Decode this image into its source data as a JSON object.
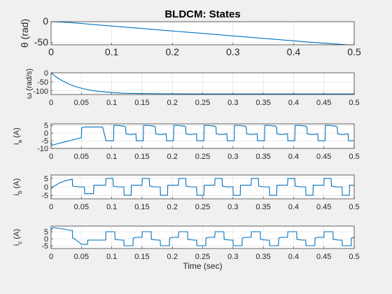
{
  "chart_data": [
    {
      "type": "line",
      "title": "BLDCM: States",
      "xlabel": "",
      "ylabel": "θ (rad)",
      "xlim": [
        0,
        0.5
      ],
      "ylim": [
        -55,
        0
      ],
      "xticks": [
        "0",
        "0.1",
        "0.2",
        "0.3",
        "0.4",
        "0.5"
      ],
      "yticks": [
        "0",
        "-50"
      ],
      "grid": true,
      "series": [
        {
          "color": "#0072BD",
          "x": [
            0,
            0.01,
            0.02,
            0.03,
            0.05,
            0.07,
            0.1,
            0.15,
            0.2,
            0.25,
            0.3,
            0.35,
            0.4,
            0.45,
            0.49,
            0.5
          ],
          "y": [
            0,
            -0.3,
            -1.0,
            -2.0,
            -4.4,
            -6.8,
            -10.4,
            -16.2,
            -22.1,
            -27.9,
            -33.8,
            -39.6,
            -45.5,
            -51.3,
            -55,
            -55
          ]
        }
      ]
    },
    {
      "type": "line",
      "title": "",
      "xlabel": "",
      "ylabel": "ω (rad/s)",
      "xlim": [
        0,
        0.5
      ],
      "ylim": [
        -120,
        0
      ],
      "xticks": [
        "0",
        "0.05",
        "0.1",
        "0.15",
        "0.2",
        "0.25",
        "0.3",
        "0.35",
        "0.4",
        "0.45",
        "0.5"
      ],
      "yticks": [
        "0",
        "-50",
        "-100"
      ],
      "grid": true,
      "series": [
        {
          "color": "#0072BD",
          "x": [
            0,
            0.005,
            0.01,
            0.02,
            0.03,
            0.04,
            0.05,
            0.06,
            0.07,
            0.08,
            0.1,
            0.12,
            0.15,
            0.2,
            0.25,
            0.3,
            0.4,
            0.5
          ],
          "y": [
            0,
            -14,
            -27,
            -47,
            -63,
            -76,
            -85,
            -93,
            -99,
            -103,
            -109,
            -113,
            -115,
            -116,
            -117,
            -117,
            -117,
            -117
          ]
        }
      ]
    },
    {
      "type": "line",
      "title": "",
      "xlabel": "",
      "ylabel": "i_a (A)",
      "xlim": [
        0,
        0.5
      ],
      "ylim": [
        -10,
        6
      ],
      "xticks": [
        "0",
        "0.05",
        "0.1",
        "0.15",
        "0.2",
        "0.25",
        "0.3",
        "0.35",
        "0.4",
        "0.45",
        "0.5"
      ],
      "yticks": [
        "5",
        "0",
        "-5",
        "-10"
      ],
      "grid": true,
      "series": [
        {
          "color": "#0072BD",
          "x": [
            0,
            0.002,
            0.01,
            0.02,
            0.03,
            0.04,
            0.05,
            0.0505,
            0.055,
            0.07,
            0.08,
            0.085,
            0.09,
            0.0905,
            0.1,
            0.103,
            0.1035,
            0.11,
            0.12,
            0.123,
            0.1235,
            0.13,
            0.14,
            0.1405,
            0.15,
            0.152,
            0.1525,
            0.16,
            0.17,
            0.172,
            0.1725,
            0.18,
            0.19,
            0.1905,
            0.2,
            0.202,
            0.2025,
            0.21,
            0.22,
            0.222,
            0.2225,
            0.23,
            0.24,
            0.2405,
            0.25,
            0.252,
            0.2525,
            0.26,
            0.27,
            0.272,
            0.2725,
            0.28,
            0.29,
            0.2905,
            0.3,
            0.302,
            0.3025,
            0.31,
            0.32,
            0.322,
            0.3225,
            0.33,
            0.34,
            0.3405,
            0.35,
            0.352,
            0.3525,
            0.36,
            0.37,
            0.372,
            0.3725,
            0.38,
            0.39,
            0.3905,
            0.4,
            0.402,
            0.4025,
            0.41,
            0.42,
            0.422,
            0.4225,
            0.43,
            0.44,
            0.4405,
            0.45,
            0.452,
            0.4525,
            0.46,
            0.47,
            0.472,
            0.4725,
            0.48,
            0.49,
            0.4905,
            0.5
          ],
          "y": [
            -6,
            -8,
            -7,
            -6,
            -5,
            -4,
            -3,
            3.5,
            4,
            4,
            4,
            4,
            -4,
            -5,
            -5,
            -5,
            5,
            5,
            4.5,
            4,
            -0.5,
            -1,
            -0.5,
            -5,
            -5,
            -5,
            5,
            5,
            4.5,
            4,
            -0.5,
            -1,
            -0.5,
            -5,
            -5,
            -5,
            5,
            5,
            4.5,
            4,
            -0.5,
            -1,
            -0.5,
            -5,
            -5,
            -5,
            5,
            5,
            4.5,
            4,
            -0.5,
            -1,
            -0.5,
            -5,
            -5,
            -5,
            5,
            5,
            4.5,
            4,
            -0.5,
            -1,
            -0.5,
            -5,
            -5,
            -5,
            5,
            5,
            4.5,
            4,
            -0.5,
            -1,
            -0.5,
            -5,
            -5,
            -5,
            5,
            5,
            4.5,
            4,
            -0.5,
            -1,
            -0.5,
            -5,
            -5,
            -5,
            5,
            5,
            4.5,
            4,
            -0.5,
            -1,
            -0.5,
            -5,
            -5
          ]
        }
      ]
    },
    {
      "type": "line",
      "title": "",
      "xlabel": "",
      "ylabel": "i_b (A)",
      "xlim": [
        0,
        0.5
      ],
      "ylim": [
        -7,
        7
      ],
      "xticks": [
        "0",
        "0.05",
        "0.1",
        "0.15",
        "0.2",
        "0.25",
        "0.3",
        "0.35",
        "0.4",
        "0.45",
        "0.5"
      ],
      "yticks": [
        "5",
        "0",
        "-5"
      ],
      "grid": true,
      "series": [
        {
          "color": "#0072BD",
          "x": [
            0,
            0.005,
            0.015,
            0.025,
            0.035,
            0.0355,
            0.045,
            0.055,
            0.0555,
            0.065,
            0.07,
            0.0705,
            0.08,
            0.09,
            0.0905,
            0.1,
            0.102,
            0.1025,
            0.11,
            0.12,
            0.1205,
            0.13,
            0.132,
            0.1325,
            0.14,
            0.15,
            0.1505,
            0.16,
            0.162,
            0.1625,
            0.17,
            0.18,
            0.1805,
            0.19,
            0.192,
            0.1925,
            0.2,
            0.21,
            0.2105,
            0.22,
            0.222,
            0.2225,
            0.23,
            0.24,
            0.2405,
            0.25,
            0.252,
            0.2525,
            0.26,
            0.27,
            0.2705,
            0.28,
            0.282,
            0.2825,
            0.29,
            0.3,
            0.3005,
            0.31,
            0.312,
            0.3125,
            0.32,
            0.33,
            0.3305,
            0.34,
            0.342,
            0.3425,
            0.35,
            0.36,
            0.3605,
            0.37,
            0.372,
            0.3725,
            0.38,
            0.39,
            0.3905,
            0.4,
            0.402,
            0.4025,
            0.41,
            0.42,
            0.4205,
            0.43,
            0.432,
            0.4325,
            0.44,
            0.45,
            0.4505,
            0.46,
            0.462,
            0.4625,
            0.47,
            0.48,
            0.4805,
            0.49,
            0.492,
            0.4925,
            0.5
          ],
          "y": [
            -1,
            0.5,
            2.5,
            3.8,
            4.5,
            0.5,
            0,
            0,
            -4,
            -4,
            -4,
            1,
            1,
            1,
            5,
            5,
            5,
            0.5,
            0,
            0,
            -5,
            -5,
            -5,
            1,
            1,
            1,
            5,
            5,
            5,
            0.5,
            0,
            0,
            -5,
            -5,
            -5,
            1,
            1,
            1,
            5,
            5,
            5,
            0.5,
            0,
            0,
            -5,
            -5,
            -5,
            1,
            1,
            1,
            5,
            5,
            5,
            0.5,
            0,
            0,
            -5,
            -5,
            -5,
            1,
            1,
            1,
            5,
            5,
            5,
            0.5,
            0,
            0,
            -5,
            -5,
            -5,
            1,
            1,
            1,
            5,
            5,
            5,
            0.5,
            0,
            0,
            -5,
            -5,
            -5,
            1,
            1,
            1,
            5,
            5,
            5,
            0.5,
            0,
            0,
            -5,
            -5,
            -5,
            1,
            1
          ]
        }
      ]
    },
    {
      "type": "line",
      "title": "",
      "xlabel": "Time (sec)",
      "ylabel": "i_c (A)",
      "xlim": [
        0,
        0.5
      ],
      "ylim": [
        -7,
        9
      ],
      "xticks": [
        "0",
        "0.05",
        "0.1",
        "0.15",
        "0.2",
        "0.25",
        "0.3",
        "0.35",
        "0.4",
        "0.45",
        "0.5"
      ],
      "yticks": [
        "5",
        "0",
        "-5"
      ],
      "grid": true,
      "series": [
        {
          "color": "#0072BD",
          "x": [
            0,
            0.003,
            0.01,
            0.02,
            0.03,
            0.035,
            0.0355,
            0.04,
            0.05,
            0.06,
            0.0605,
            0.07,
            0.08,
            0.09,
            0.0905,
            0.1,
            0.105,
            0.1055,
            0.115,
            0.12,
            0.1205,
            0.13,
            0.135,
            0.1355,
            0.14,
            0.15,
            0.1505,
            0.16,
            0.165,
            0.1655,
            0.175,
            0.18,
            0.1805,
            0.19,
            0.195,
            0.1955,
            0.2,
            0.21,
            0.2105,
            0.22,
            0.225,
            0.2255,
            0.235,
            0.24,
            0.2405,
            0.25,
            0.255,
            0.2555,
            0.26,
            0.27,
            0.2705,
            0.28,
            0.285,
            0.2855,
            0.295,
            0.3,
            0.3005,
            0.31,
            0.315,
            0.3155,
            0.32,
            0.33,
            0.3305,
            0.34,
            0.345,
            0.3455,
            0.355,
            0.36,
            0.3605,
            0.37,
            0.375,
            0.3755,
            0.38,
            0.39,
            0.3905,
            0.4,
            0.405,
            0.4055,
            0.415,
            0.42,
            0.4205,
            0.43,
            0.435,
            0.4355,
            0.44,
            0.45,
            0.4505,
            0.46,
            0.465,
            0.4655,
            0.475,
            0.48,
            0.4805,
            0.49,
            0.495,
            0.4955,
            0.5
          ],
          "y": [
            6,
            8,
            7.5,
            7,
            6,
            6,
            0.5,
            -0.5,
            -4,
            -4,
            -1,
            -1,
            -1,
            -1,
            5,
            5,
            5,
            -0.5,
            -1,
            -1,
            -5,
            -5,
            -5,
            0.5,
            1,
            1,
            5,
            5,
            5,
            -0.5,
            -1,
            -1,
            -5,
            -5,
            -5,
            0.5,
            1,
            1,
            5,
            5,
            5,
            -0.5,
            -1,
            -1,
            -5,
            -5,
            -5,
            0.5,
            1,
            1,
            5,
            5,
            5,
            -0.5,
            -1,
            -1,
            -5,
            -5,
            -5,
            0.5,
            1,
            1,
            5,
            5,
            5,
            -0.5,
            -1,
            -1,
            -5,
            -5,
            -5,
            0.5,
            1,
            1,
            5,
            5,
            5,
            -0.5,
            -1,
            -1,
            -5,
            -5,
            -5,
            0.5,
            1,
            1,
            5,
            5,
            5,
            -0.5,
            -1,
            -1,
            -5,
            -5,
            -5,
            0.5,
            1
          ]
        }
      ]
    }
  ]
}
